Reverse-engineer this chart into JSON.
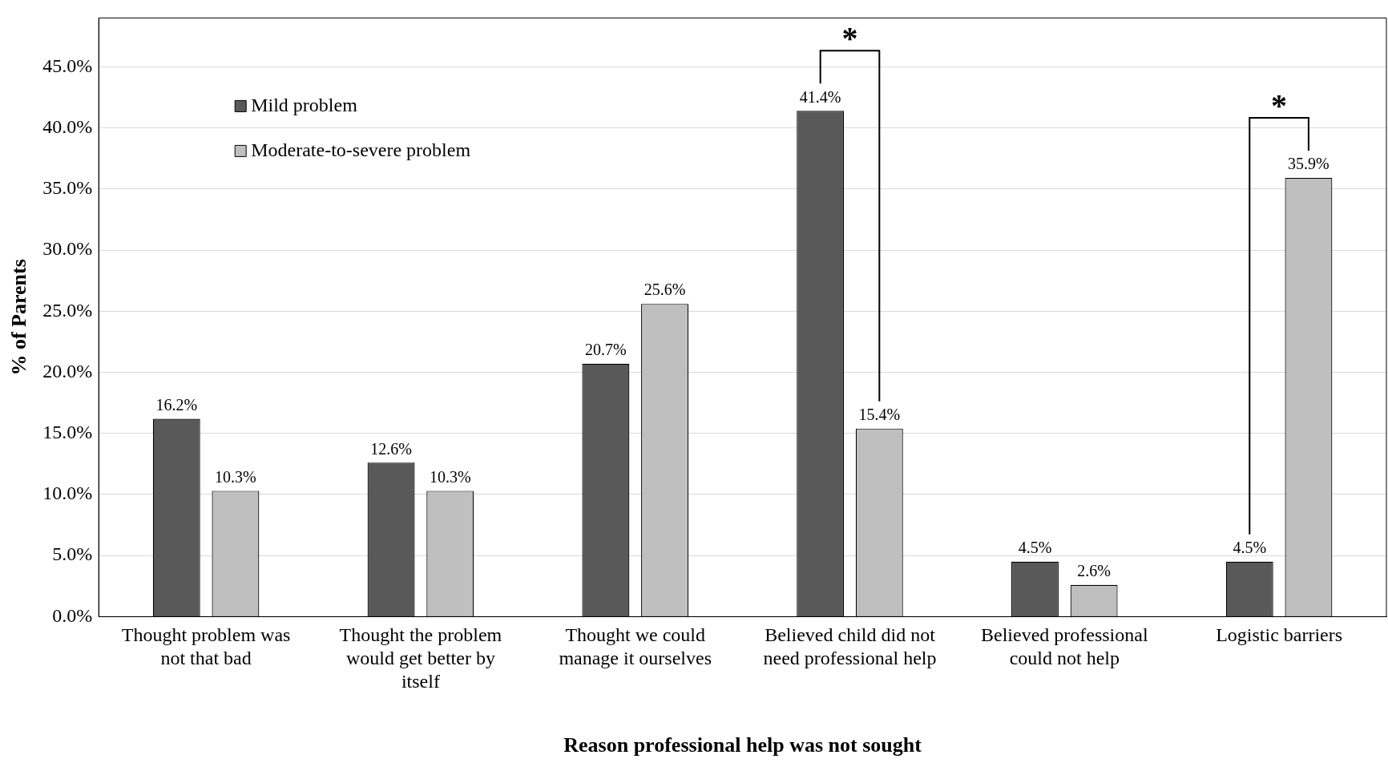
{
  "chart_data": {
    "type": "bar",
    "xlabel": "Reason professional help was not sought",
    "ylabel": "% of Parents",
    "categories": [
      "Thought problem was not that bad",
      "Thought the problem would get better by itself",
      "Thought we could manage it ourselves",
      "Believed child did not need professional help",
      "Believed professional could not help",
      "Logistic barriers"
    ],
    "series": [
      {
        "name": "Mild problem",
        "color": "#595959",
        "values": [
          16.2,
          12.6,
          20.7,
          41.4,
          4.5,
          4.5
        ],
        "value_labels": [
          "16.2%",
          "12.6%",
          "20.7%",
          "41.4%",
          "4.5%",
          "4.5%"
        ]
      },
      {
        "name": "Moderate-to-severe problem",
        "color": "#bfbfbf",
        "values": [
          10.3,
          10.3,
          25.6,
          15.4,
          2.6,
          35.9
        ],
        "value_labels": [
          "10.3%",
          "10.3%",
          "25.6%",
          "15.4%",
          "2.6%",
          "35.9%"
        ]
      }
    ],
    "ylim": [
      0,
      49
    ],
    "yticks": [
      {
        "value": 0,
        "label": "0.0%"
      },
      {
        "value": 5,
        "label": "5.0%"
      },
      {
        "value": 10,
        "label": "10.0%"
      },
      {
        "value": 15,
        "label": "15.0%"
      },
      {
        "value": 20,
        "label": "20.0%"
      },
      {
        "value": 25,
        "label": "25.0%"
      },
      {
        "value": 30,
        "label": "30.0%"
      },
      {
        "value": 35,
        "label": "35.0%"
      },
      {
        "value": 40,
        "label": "40.0%"
      },
      {
        "value": 45,
        "label": "45.0%"
      }
    ],
    "grid": "y",
    "legend": "top left",
    "annotations": [
      "*",
      "*"
    ]
  }
}
